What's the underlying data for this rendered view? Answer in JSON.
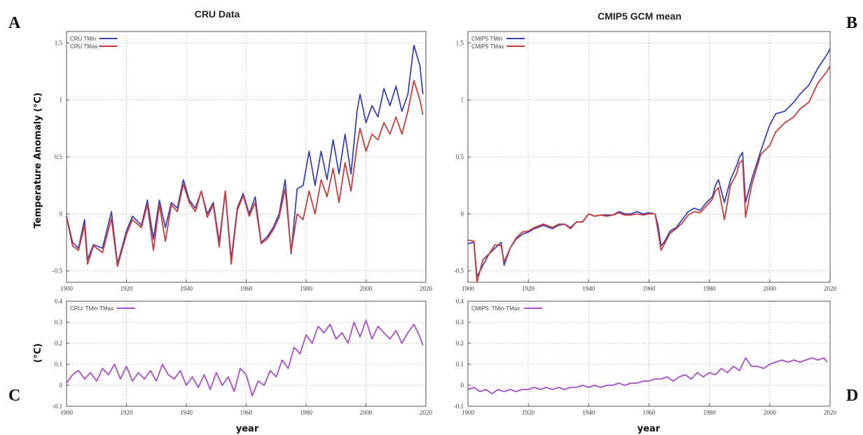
{
  "panel_letters": [
    "A",
    "B",
    "C",
    "D"
  ],
  "colors": {
    "tmin": "#3a43b8",
    "tmax": "#cc3b3b",
    "diff": "#a64fc9",
    "grid": "#bdbdbd"
  },
  "chart_data": [
    {
      "id": "A",
      "type": "line",
      "title": "CRU Data",
      "xlabel": "",
      "ylabel": "Temperature Anomaly (°C)",
      "xlim": [
        1900,
        2020
      ],
      "ylim": [
        -0.6,
        1.6
      ],
      "xticks": [
        1900,
        1920,
        1940,
        1960,
        1980,
        2000,
        2020
      ],
      "yticks": [
        -0.5,
        0,
        0.5,
        1,
        1.5
      ],
      "ytick_labels": [
        "-0.5",
        "0",
        "0.5",
        "1",
        "1.5"
      ],
      "grid": true,
      "legend": "top-left",
      "x": [
        1900,
        1902,
        1904,
        1906,
        1907,
        1909,
        1912,
        1915,
        1917,
        1920,
        1922,
        1925,
        1927,
        1929,
        1931,
        1933,
        1935,
        1937,
        1939,
        1941,
        1943,
        1945,
        1947,
        1949,
        1951,
        1953,
        1955,
        1957,
        1959,
        1961,
        1963,
        1965,
        1967,
        1969,
        1971,
        1973,
        1975,
        1977,
        1979,
        1981,
        1983,
        1985,
        1987,
        1989,
        1991,
        1993,
        1995,
        1997,
        1998,
        2000,
        2002,
        2004,
        2006,
        2008,
        2010,
        2012,
        2014,
        2016,
        2018,
        2019
      ],
      "series": [
        {
          "name": "CRU TMin",
          "values": [
            -0.02,
            -0.25,
            -0.3,
            -0.05,
            -0.4,
            -0.27,
            -0.3,
            0.02,
            -0.44,
            -0.15,
            -0.02,
            -0.1,
            0.12,
            -0.22,
            0.12,
            -0.12,
            0.1,
            0.05,
            0.3,
            0.12,
            0.05,
            0.2,
            0.0,
            0.1,
            -0.25,
            0.2,
            -0.4,
            0.05,
            0.18,
            0.0,
            0.15,
            -0.25,
            -0.2,
            -0.12,
            0.0,
            0.3,
            -0.35,
            0.22,
            0.25,
            0.55,
            0.25,
            0.55,
            0.3,
            0.65,
            0.35,
            0.7,
            0.35,
            0.9,
            1.05,
            0.8,
            0.95,
            0.85,
            1.1,
            0.95,
            1.12,
            0.9,
            1.05,
            1.48,
            1.3,
            1.05
          ]
        },
        {
          "name": "CRU TMax",
          "values": [
            -0.03,
            -0.28,
            -0.32,
            -0.1,
            -0.44,
            -0.28,
            -0.34,
            -0.04,
            -0.46,
            -0.18,
            -0.05,
            -0.12,
            0.08,
            -0.32,
            0.08,
            -0.24,
            0.08,
            0.02,
            0.26,
            0.1,
            0.02,
            0.2,
            -0.03,
            0.08,
            -0.29,
            0.2,
            -0.44,
            0.03,
            0.16,
            -0.02,
            0.1,
            -0.26,
            -0.22,
            -0.14,
            -0.03,
            0.22,
            -0.33,
            0.0,
            -0.05,
            0.2,
            0.0,
            0.3,
            0.15,
            0.4,
            0.1,
            0.45,
            0.2,
            0.6,
            0.75,
            0.55,
            0.7,
            0.65,
            0.8,
            0.7,
            0.85,
            0.7,
            0.9,
            1.17,
            1.0,
            0.87
          ]
        }
      ]
    },
    {
      "id": "B",
      "type": "line",
      "title": "CMIP5 GCM mean",
      "xlabel": "",
      "ylabel": "",
      "xlim": [
        1900,
        2020
      ],
      "ylim": [
        -0.6,
        1.6
      ],
      "xticks": [
        1900,
        1920,
        1940,
        1960,
        1980,
        2000,
        2020
      ],
      "yticks": [
        -0.5,
        0,
        0.5,
        1,
        1.5
      ],
      "ytick_labels": [
        "-0.5",
        "0",
        "0.5",
        "1",
        "1.5"
      ],
      "grid": true,
      "legend": "top-left",
      "x": [
        1900,
        1902,
        1903,
        1905,
        1907,
        1909,
        1911,
        1912,
        1914,
        1916,
        1918,
        1920,
        1922,
        1925,
        1928,
        1930,
        1932,
        1934,
        1936,
        1938,
        1940,
        1942,
        1944,
        1946,
        1948,
        1950,
        1952,
        1954,
        1956,
        1958,
        1960,
        1962,
        1963,
        1964,
        1965,
        1967,
        1969,
        1971,
        1973,
        1975,
        1977,
        1979,
        1981,
        1982,
        1983,
        1985,
        1987,
        1989,
        1990,
        1991,
        1992,
        1994,
        1997,
        2000,
        2002,
        2005,
        2008,
        2010,
        2013,
        2016,
        2019,
        2020
      ],
      "series": [
        {
          "name": "CMIP5 TMin",
          "values": [
            -0.26,
            -0.25,
            -0.55,
            -0.45,
            -0.35,
            -0.3,
            -0.25,
            -0.45,
            -0.3,
            -0.22,
            -0.18,
            -0.16,
            -0.13,
            -0.1,
            -0.13,
            -0.1,
            -0.09,
            -0.12,
            -0.07,
            -0.07,
            0.0,
            -0.02,
            -0.01,
            -0.01,
            -0.01,
            0.02,
            0.0,
            0.0,
            0.02,
            0.0,
            0.01,
            0.0,
            -0.1,
            -0.28,
            -0.25,
            -0.15,
            -0.12,
            -0.05,
            0.02,
            0.05,
            0.03,
            0.1,
            0.15,
            0.25,
            0.3,
            0.1,
            0.3,
            0.42,
            0.5,
            0.54,
            0.1,
            0.3,
            0.55,
            0.78,
            0.88,
            0.9,
            0.98,
            1.05,
            1.13,
            1.28,
            1.4,
            1.45
          ]
        },
        {
          "name": "CMIP5 TMax",
          "values": [
            -0.23,
            -0.24,
            -0.6,
            -0.4,
            -0.35,
            -0.27,
            -0.28,
            -0.42,
            -0.3,
            -0.21,
            -0.16,
            -0.15,
            -0.12,
            -0.09,
            -0.12,
            -0.09,
            -0.09,
            -0.13,
            -0.07,
            -0.07,
            0.0,
            -0.02,
            -0.01,
            -0.02,
            -0.01,
            0.01,
            -0.01,
            -0.01,
            0.0,
            -0.01,
            0.0,
            0.0,
            -0.15,
            -0.32,
            -0.27,
            -0.17,
            -0.13,
            -0.08,
            -0.01,
            0.02,
            0.01,
            0.07,
            0.13,
            0.2,
            0.23,
            -0.05,
            0.25,
            0.35,
            0.45,
            0.47,
            -0.03,
            0.25,
            0.52,
            0.6,
            0.72,
            0.8,
            0.85,
            0.92,
            0.98,
            1.15,
            1.25,
            1.3
          ]
        }
      ]
    },
    {
      "id": "C",
      "type": "line",
      "title": "",
      "xlabel": "year",
      "ylabel": "(°C)",
      "xlim": [
        1900,
        2020
      ],
      "ylim": [
        -0.1,
        0.4
      ],
      "xticks": [
        1900,
        1920,
        1940,
        1960,
        1980,
        2000,
        2020
      ],
      "yticks": [
        -0.1,
        0,
        0.1,
        0.2,
        0.3,
        0.4
      ],
      "ytick_labels": [
        "-0.1",
        "0",
        "0.1",
        "0.2",
        "0.3",
        "0.4"
      ],
      "grid": true,
      "legend": "top-left",
      "x": [
        1900,
        1902,
        1904,
        1906,
        1908,
        1910,
        1912,
        1914,
        1916,
        1918,
        1920,
        1922,
        1924,
        1926,
        1928,
        1930,
        1932,
        1934,
        1936,
        1938,
        1940,
        1942,
        1944,
        1946,
        1948,
        1950,
        1952,
        1954,
        1956,
        1958,
        1960,
        1962,
        1964,
        1966,
        1968,
        1970,
        1972,
        1974,
        1976,
        1978,
        1980,
        1982,
        1984,
        1986,
        1988,
        1990,
        1992,
        1994,
        1996,
        1998,
        2000,
        2002,
        2004,
        2006,
        2008,
        2010,
        2012,
        2014,
        2016,
        2018,
        2019
      ],
      "series": [
        {
          "name": "CRU: TMin-TMax",
          "values": [
            0.01,
            0.05,
            0.07,
            0.03,
            0.06,
            0.02,
            0.08,
            0.05,
            0.1,
            0.03,
            0.09,
            0.02,
            0.06,
            0.03,
            0.07,
            0.02,
            0.1,
            0.05,
            0.03,
            0.07,
            0.0,
            0.04,
            -0.01,
            0.05,
            -0.02,
            0.06,
            0.0,
            0.04,
            -0.03,
            0.08,
            0.05,
            -0.05,
            0.02,
            0.0,
            0.07,
            0.04,
            0.12,
            0.08,
            0.18,
            0.15,
            0.24,
            0.2,
            0.28,
            0.25,
            0.29,
            0.22,
            0.25,
            0.2,
            0.3,
            0.23,
            0.31,
            0.22,
            0.28,
            0.25,
            0.22,
            0.26,
            0.2,
            0.25,
            0.29,
            0.23,
            0.19
          ]
        }
      ]
    },
    {
      "id": "D",
      "type": "line",
      "title": "",
      "xlabel": "year",
      "ylabel": "",
      "xlim": [
        1900,
        2020
      ],
      "ylim": [
        -0.1,
        0.4
      ],
      "xticks": [
        1900,
        1920,
        1940,
        1960,
        1980,
        2000,
        2020
      ],
      "yticks": [
        -0.1,
        0,
        0.1,
        0.2,
        0.3,
        0.4
      ],
      "ytick_labels": [
        "-0.1",
        "0",
        "0.1",
        "0.2",
        "0.3",
        "0.4"
      ],
      "grid": true,
      "legend": "top-left",
      "x": [
        1900,
        1902,
        1904,
        1906,
        1908,
        1910,
        1912,
        1914,
        1916,
        1918,
        1920,
        1922,
        1924,
        1926,
        1928,
        1930,
        1932,
        1934,
        1936,
        1938,
        1940,
        1942,
        1944,
        1946,
        1948,
        1950,
        1952,
        1954,
        1956,
        1958,
        1960,
        1962,
        1964,
        1966,
        1968,
        1970,
        1972,
        1974,
        1976,
        1978,
        1980,
        1982,
        1984,
        1986,
        1988,
        1990,
        1992,
        1994,
        1996,
        1998,
        2000,
        2002,
        2004,
        2006,
        2008,
        2010,
        2012,
        2014,
        2016,
        2018,
        2019
      ],
      "series": [
        {
          "name": "CMIP5: TMin-TMax",
          "values": [
            -0.02,
            -0.01,
            -0.03,
            -0.02,
            -0.04,
            -0.02,
            -0.03,
            -0.02,
            -0.03,
            -0.02,
            -0.02,
            -0.01,
            -0.02,
            -0.01,
            -0.02,
            -0.01,
            -0.02,
            -0.01,
            -0.01,
            0.0,
            -0.01,
            0.0,
            -0.01,
            0.0,
            0.0,
            0.01,
            0.0,
            0.01,
            0.01,
            0.02,
            0.02,
            0.03,
            0.03,
            0.04,
            0.02,
            0.04,
            0.05,
            0.03,
            0.06,
            0.04,
            0.06,
            0.05,
            0.08,
            0.06,
            0.09,
            0.07,
            0.13,
            0.09,
            0.09,
            0.08,
            0.1,
            0.11,
            0.12,
            0.11,
            0.12,
            0.11,
            0.12,
            0.13,
            0.12,
            0.13,
            0.11
          ]
        }
      ]
    }
  ]
}
